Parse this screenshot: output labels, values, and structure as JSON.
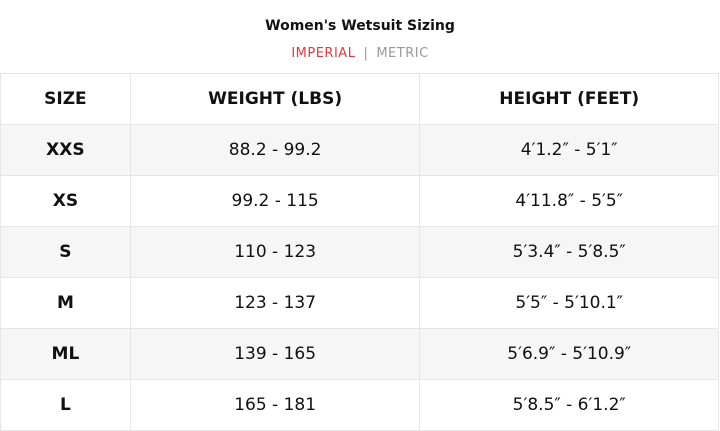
{
  "title": "Women's Wetsuit Sizing",
  "units": {
    "active": "IMPERIAL",
    "separator": "|",
    "inactive": "METRIC",
    "active_color": "#e8373f"
  },
  "table": {
    "headers": [
      "SIZE",
      "WEIGHT (LBS)",
      "HEIGHT (FEET)"
    ],
    "rows": [
      [
        "XXS",
        "88.2 - 99.2",
        "4′1.2″ - 5′1″"
      ],
      [
        "XS",
        "99.2 - 115",
        "4′11.8″ - 5′5″"
      ],
      [
        "S",
        "110 - 123",
        "5′3.4″ - 5′8.5″"
      ],
      [
        "M",
        "123 - 137",
        "5′5″ - 5′10.1″"
      ],
      [
        "ML",
        "139 - 165",
        "5′6.9″ - 5′10.9″"
      ],
      [
        "L",
        "165 - 181",
        "5′8.5″ - 6′1.2″"
      ]
    ]
  }
}
